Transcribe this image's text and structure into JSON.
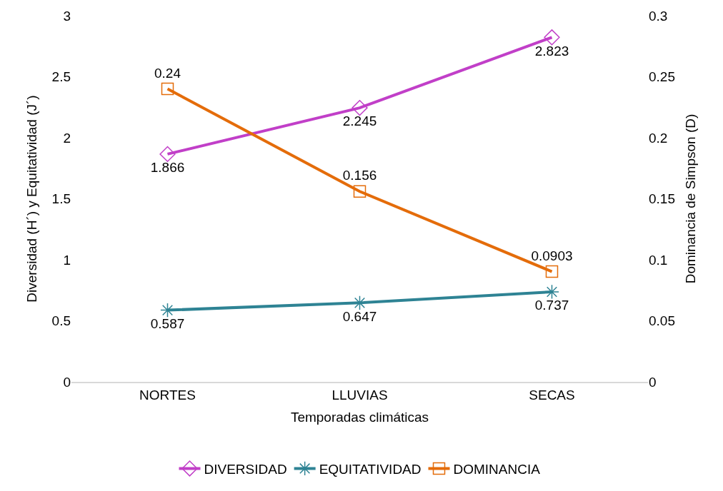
{
  "chart_data": {
    "type": "line",
    "xlabel": "Temporadas climáticas",
    "ylabel": "Diversidad (H´) y Equitatividad (J´)",
    "y2label": "Dominancia de Simpson (D)",
    "categories": [
      "NORTES",
      "LLUVIAS",
      "SECAS"
    ],
    "series": [
      {
        "name": "DIVERSIDAD",
        "color": "#c13fc8",
        "values": [
          1.866,
          2.245,
          2.823
        ],
        "marker": "diamond"
      },
      {
        "name": "EQUITATIVIDAD",
        "color": "#2e8394",
        "values": [
          0.587,
          0.647,
          0.737
        ],
        "marker": "cross"
      },
      {
        "name": "DOMINANCIA",
        "color": "#e46c0a",
        "values": [
          0.24,
          0.156,
          0.0903
        ],
        "marker": "square",
        "axis": "y2"
      }
    ],
    "ylim": [
      0,
      3
    ],
    "yticks": [
      0,
      0.5,
      1,
      1.5,
      2,
      2.5,
      3
    ],
    "y2lim": [
      0,
      0.3
    ],
    "y2ticks": [
      0,
      0.05,
      0.1,
      0.15,
      0.2,
      0.25,
      0.3
    ],
    "data_labels": true,
    "legend": "bottom",
    "line_style": "solid"
  }
}
